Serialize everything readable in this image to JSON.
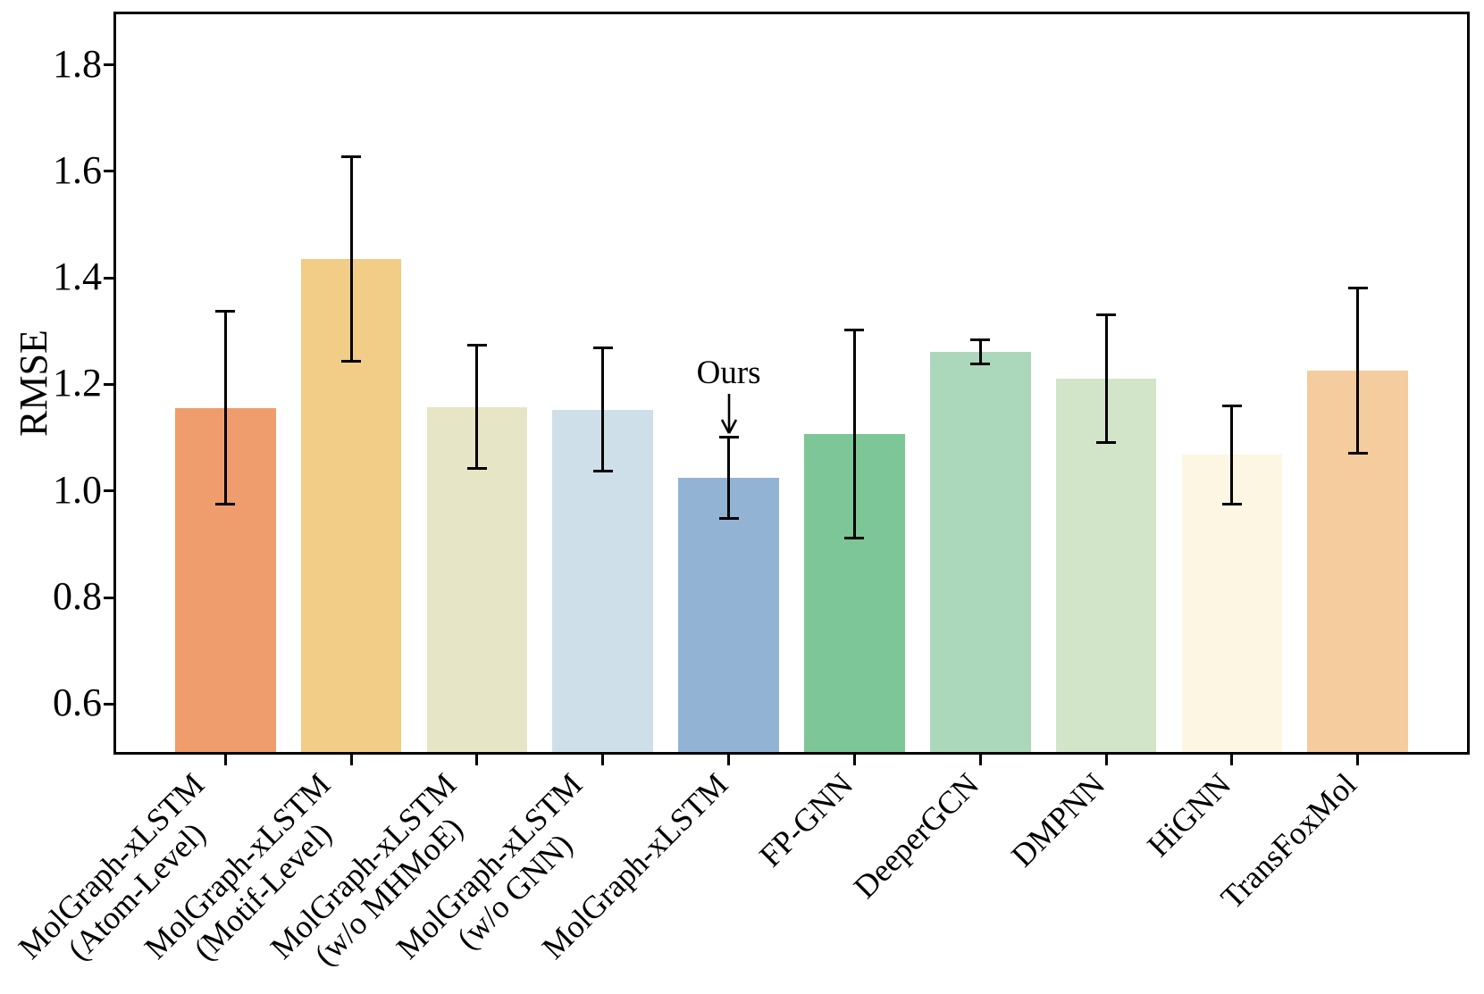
{
  "figure": {
    "background_color": "#ffffff",
    "axis_color": "#000000",
    "error_bar_color": "#000000"
  },
  "chart_data": {
    "type": "bar",
    "title": "",
    "xlabel": "",
    "ylabel": "RMSE",
    "categories": [
      "MolGraph-xLSTM\n(Atom-Level)",
      "MolGraph-xLSTM\n(Motif-Level)",
      "MolGraph-xLSTM\n(w/o MHMoE)",
      "MolGraph-xLSTM\n(w/o GNN)",
      "MolGraph-xLSTM",
      "FP-GNN",
      "DeeperGCN",
      "DMPNN",
      "HiGNN",
      "TransFoxMol"
    ],
    "values": [
      1.156,
      1.436,
      1.158,
      1.153,
      1.025,
      1.107,
      1.261,
      1.211,
      1.068,
      1.226
    ],
    "errors": [
      0.181,
      0.192,
      0.115,
      0.116,
      0.076,
      0.195,
      0.022,
      0.12,
      0.092,
      0.155
    ],
    "bar_colors": [
      "#EF9D6C",
      "#F1CD87",
      "#E6E5C6",
      "#CFDFE9",
      "#93B3D5",
      "#7DC697",
      "#ABD7BB",
      "#D3E5C9",
      "#FDF6E2",
      "#F4CC9D"
    ],
    "ytick_labels": [
      "0.6",
      "0.8",
      "1.0",
      "1.2",
      "1.4",
      "1.6",
      "1.8"
    ],
    "ylim": [
      0.505,
      1.9
    ],
    "grid": false,
    "legend": null,
    "bar_width_fraction": 0.8,
    "annotation": {
      "text": "Ours",
      "bar_index": 4
    }
  }
}
